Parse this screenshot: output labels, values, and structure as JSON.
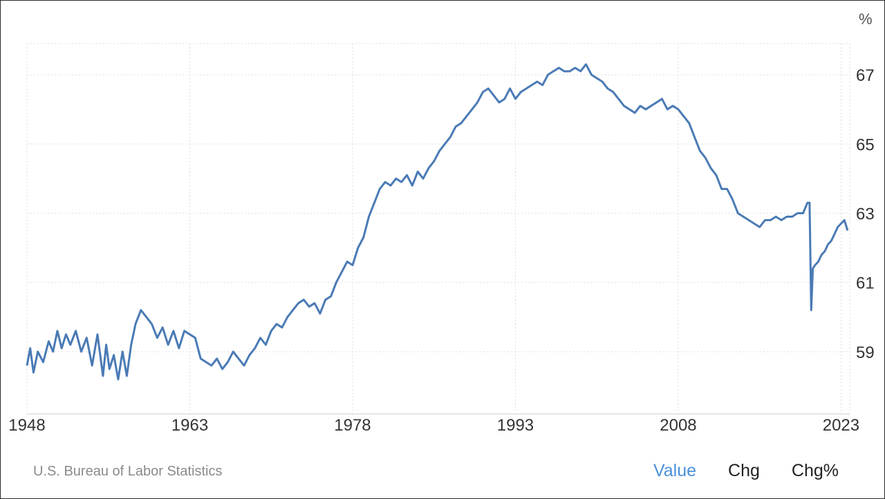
{
  "chart_data": {
    "type": "line",
    "unit": "%",
    "xlim": [
      1948,
      2023.8
    ],
    "ylim": [
      57.2,
      67.9
    ],
    "x_ticks": [
      1948,
      1963,
      1978,
      1993,
      2008,
      2023
    ],
    "x_tick_labels": [
      "1948",
      "1963",
      "1978",
      "1993",
      "2008",
      "2023"
    ],
    "y_ticks": [
      59,
      61,
      63,
      65,
      67
    ],
    "y_tick_labels": [
      "59",
      "61",
      "63",
      "65",
      "67"
    ],
    "grid": true,
    "color": "#4a7ab5",
    "series": [
      {
        "x": [
          1948.0,
          1948.3,
          1948.6,
          1949.0,
          1949.5,
          1950.0,
          1950.4,
          1950.8,
          1951.2,
          1951.6,
          1952.0,
          1952.5,
          1953.0,
          1953.5,
          1954.0,
          1954.5,
          1955.0,
          1955.3,
          1955.6,
          1956.0,
          1956.4,
          1956.8,
          1957.2,
          1957.6,
          1958.0,
          1958.5,
          1959.0,
          1959.5,
          1960.0,
          1960.5,
          1961.0,
          1961.5,
          1962.0,
          1962.5,
          1963.0,
          1963.5,
          1964.0,
          1964.5,
          1965.0,
          1965.5,
          1966.0,
          1966.5,
          1967.0,
          1967.5,
          1968.0,
          1968.5,
          1969.0,
          1969.5,
          1970.0,
          1970.5,
          1971.0,
          1971.5,
          1972.0,
          1972.5,
          1973.0,
          1973.5,
          1974.0,
          1974.5,
          1975.0,
          1975.5,
          1976.0,
          1976.5,
          1977.0,
          1977.5,
          1978.0,
          1978.5,
          1979.0,
          1979.5,
          1980.0,
          1980.5,
          1981.0,
          1981.5,
          1982.0,
          1982.5,
          1983.0,
          1983.5,
          1984.0,
          1984.5,
          1985.0,
          1985.5,
          1986.0,
          1986.5,
          1987.0,
          1987.5,
          1988.0,
          1988.5,
          1989.0,
          1989.5,
          1990.0,
          1990.5,
          1991.0,
          1991.5,
          1992.0,
          1992.5,
          1993.0,
          1993.5,
          1994.0,
          1994.5,
          1995.0,
          1995.5,
          1996.0,
          1996.5,
          1997.0,
          1997.5,
          1998.0,
          1998.5,
          1999.0,
          1999.5,
          2000.0,
          2000.5,
          2001.0,
          2001.5,
          2002.0,
          2002.5,
          2003.0,
          2003.5,
          2004.0,
          2004.5,
          2005.0,
          2005.5,
          2006.0,
          2006.5,
          2007.0,
          2007.5,
          2008.0,
          2008.5,
          2009.0,
          2009.5,
          2010.0,
          2010.5,
          2011.0,
          2011.5,
          2012.0,
          2012.5,
          2013.0,
          2013.5,
          2014.0,
          2014.5,
          2015.0,
          2015.5,
          2016.0,
          2016.5,
          2017.0,
          2017.5,
          2018.0,
          2018.5,
          2019.0,
          2019.5,
          2019.9,
          2020.1,
          2020.25,
          2020.4,
          2020.6,
          2020.9,
          2021.2,
          2021.5,
          2021.8,
          2022.1,
          2022.4,
          2022.7,
          2023.0,
          2023.3,
          2023.6
        ],
        "y": [
          58.6,
          59.1,
          58.4,
          59.0,
          58.7,
          59.3,
          59.0,
          59.6,
          59.1,
          59.5,
          59.2,
          59.6,
          59.0,
          59.4,
          58.6,
          59.5,
          58.3,
          59.2,
          58.5,
          58.9,
          58.2,
          59.0,
          58.3,
          59.2,
          59.8,
          60.2,
          60.0,
          59.8,
          59.4,
          59.7,
          59.2,
          59.6,
          59.1,
          59.6,
          59.5,
          59.4,
          58.8,
          58.7,
          58.6,
          58.8,
          58.5,
          58.7,
          59.0,
          58.8,
          58.6,
          58.9,
          59.1,
          59.4,
          59.2,
          59.6,
          59.8,
          59.7,
          60.0,
          60.2,
          60.4,
          60.5,
          60.3,
          60.4,
          60.1,
          60.5,
          60.6,
          61.0,
          61.3,
          61.6,
          61.5,
          62.0,
          62.3,
          62.9,
          63.3,
          63.7,
          63.9,
          63.8,
          64.0,
          63.9,
          64.1,
          63.8,
          64.2,
          64.0,
          64.3,
          64.5,
          64.8,
          65.0,
          65.2,
          65.5,
          65.6,
          65.8,
          66.0,
          66.2,
          66.5,
          66.6,
          66.4,
          66.2,
          66.3,
          66.6,
          66.3,
          66.5,
          66.6,
          66.7,
          66.8,
          66.7,
          67.0,
          67.1,
          67.2,
          67.1,
          67.1,
          67.2,
          67.1,
          67.3,
          67.0,
          66.9,
          66.8,
          66.6,
          66.5,
          66.3,
          66.1,
          66.0,
          65.9,
          66.1,
          66.0,
          66.1,
          66.2,
          66.3,
          66.0,
          66.1,
          66.0,
          65.8,
          65.6,
          65.2,
          64.8,
          64.6,
          64.3,
          64.1,
          63.7,
          63.7,
          63.4,
          63.0,
          62.9,
          62.8,
          62.7,
          62.6,
          62.8,
          62.8,
          62.9,
          62.8,
          62.9,
          62.9,
          63.0,
          63.0,
          63.3,
          63.3,
          60.2,
          61.4,
          61.5,
          61.6,
          61.8,
          61.9,
          62.1,
          62.2,
          62.4,
          62.6,
          62.7,
          62.8,
          62.5
        ]
      }
    ],
    "source": "U.S. Bureau of Labor Statistics"
  },
  "tabs": [
    {
      "label": "Value",
      "active": true
    },
    {
      "label": "Chg",
      "active": false
    },
    {
      "label": "Chg%",
      "active": false
    }
  ],
  "unit_label": "%"
}
